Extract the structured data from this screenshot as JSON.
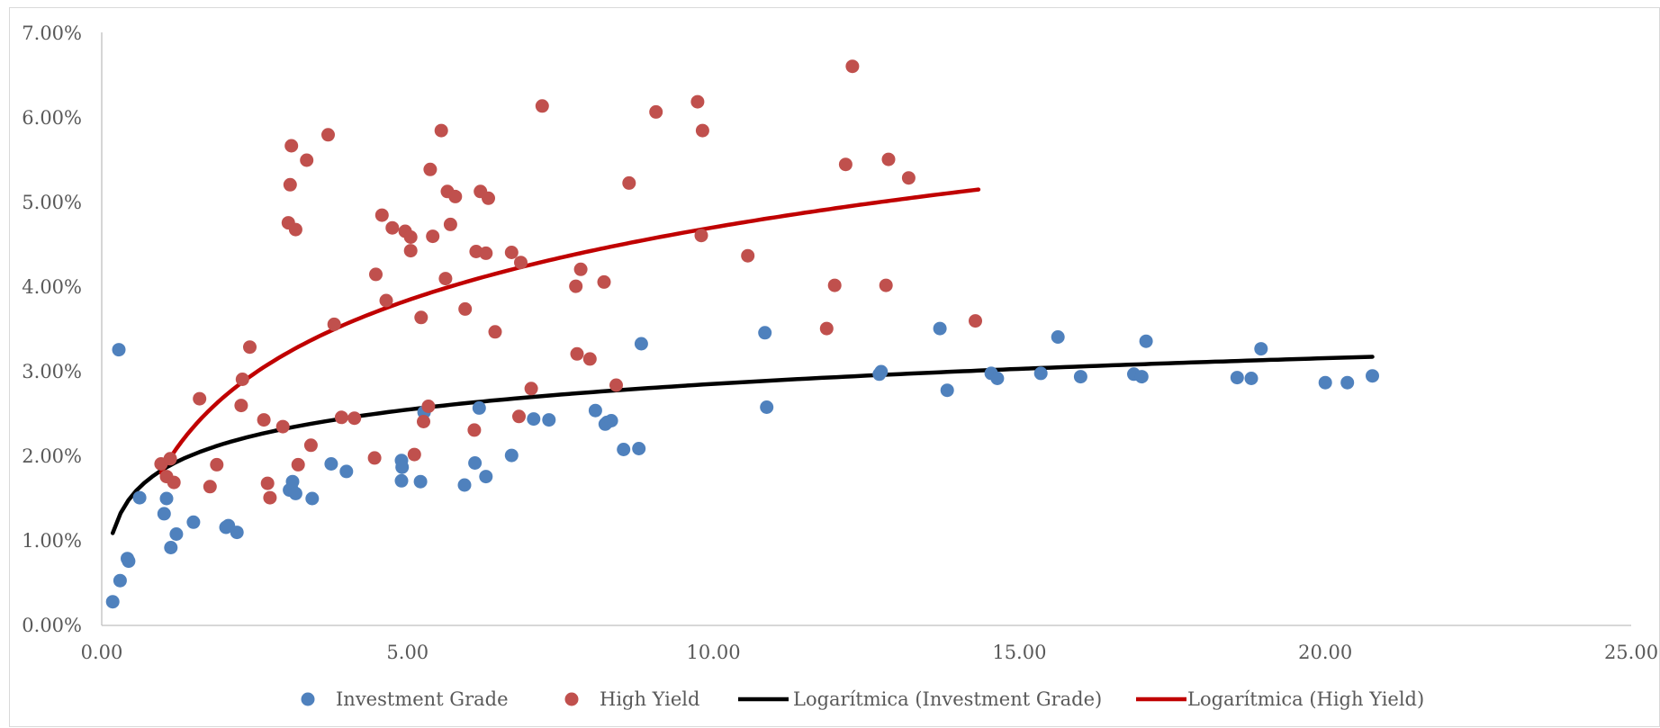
{
  "chart_data": {
    "type": "scatter",
    "title": "",
    "xlabel": "",
    "ylabel": "",
    "xlim": [
      0,
      25
    ],
    "ylim": [
      0,
      0.07
    ],
    "x_ticks": [
      0,
      5,
      10,
      15,
      20,
      25
    ],
    "x_tick_labels": [
      "0.00",
      "5.00",
      "10.00",
      "15.00",
      "20.00",
      "25.00"
    ],
    "y_ticks": [
      0,
      0.01,
      0.02,
      0.03,
      0.04,
      0.05,
      0.06,
      0.07
    ],
    "y_tick_labels": [
      "0.00%",
      "1.00%",
      "2.00%",
      "3.00%",
      "4.00%",
      "5.00%",
      "6.00%",
      "7.00%"
    ],
    "grid": false,
    "legend_position": "bottom",
    "series": [
      {
        "name": "Investment Grade",
        "kind": "scatter",
        "color": "#4F81BD",
        "x": [
          0.18,
          0.3,
          0.28,
          0.42,
          0.44,
          0.62,
          1.02,
          1.06,
          1.13,
          1.22,
          1.5,
          2.03,
          2.07,
          2.21,
          3.07,
          3.1,
          3.12,
          3.17,
          3.44,
          3.75,
          4.0,
          4.9,
          4.91,
          4.9,
          5.21,
          5.27,
          5.93,
          6.1,
          6.17,
          6.28,
          6.7,
          7.06,
          7.31,
          8.07,
          8.23,
          8.26,
          8.33,
          8.53,
          8.78,
          8.82,
          10.84,
          10.87,
          12.71,
          12.74,
          13.7,
          13.82,
          14.54,
          14.64,
          15.35,
          15.63,
          16.0,
          16.87,
          17.0,
          17.07,
          18.56,
          18.79,
          18.95,
          20.0,
          20.36,
          20.77
        ],
        "y": [
          0.0028,
          0.0053,
          0.0326,
          0.0079,
          0.0076,
          0.0151,
          0.0132,
          0.015,
          0.0092,
          0.0108,
          0.0122,
          0.0116,
          0.0118,
          0.011,
          0.016,
          0.0162,
          0.017,
          0.0156,
          0.015,
          0.0191,
          0.0182,
          0.0195,
          0.0187,
          0.0171,
          0.017,
          0.0252,
          0.0166,
          0.0192,
          0.0257,
          0.0176,
          0.0201,
          0.0244,
          0.0243,
          0.0254,
          0.0238,
          0.024,
          0.0242,
          0.0208,
          0.0209,
          0.0333,
          0.0346,
          0.0258,
          0.0297,
          0.03,
          0.0351,
          0.0278,
          0.0298,
          0.0292,
          0.0298,
          0.0341,
          0.0294,
          0.0297,
          0.0294,
          0.0336,
          0.0293,
          0.0292,
          0.0327,
          0.0287,
          0.0287,
          0.0295
        ]
      },
      {
        "name": "High Yield",
        "kind": "scatter",
        "color": "#C0504D",
        "x": [
          0.97,
          1.06,
          1.12,
          1.18,
          1.6,
          1.77,
          1.88,
          2.28,
          2.3,
          2.42,
          2.65,
          2.71,
          2.75,
          2.96,
          3.05,
          3.08,
          3.1,
          3.17,
          3.21,
          3.35,
          3.42,
          3.7,
          3.8,
          3.92,
          4.13,
          4.46,
          4.48,
          4.58,
          4.65,
          4.75,
          4.96,
          5.05,
          5.05,
          5.11,
          5.22,
          5.26,
          5.34,
          5.37,
          5.41,
          5.55,
          5.62,
          5.65,
          5.7,
          5.78,
          5.94,
          6.09,
          6.12,
          6.19,
          6.28,
          6.32,
          6.43,
          6.7,
          6.82,
          6.85,
          7.02,
          7.2,
          7.75,
          7.77,
          7.83,
          7.98,
          8.21,
          8.41,
          8.62,
          9.06,
          9.74,
          9.8,
          9.82,
          10.56,
          11.85,
          11.98,
          12.16,
          12.27,
          12.82,
          12.86,
          13.19,
          14.28
        ],
        "y": [
          0.0191,
          0.0176,
          0.0197,
          0.0169,
          0.0268,
          0.0164,
          0.019,
          0.026,
          0.0291,
          0.0329,
          0.0243,
          0.0168,
          0.0151,
          0.0235,
          0.0476,
          0.0521,
          0.0567,
          0.0468,
          0.019,
          0.055,
          0.0213,
          0.058,
          0.0356,
          0.0246,
          0.0245,
          0.0198,
          0.0415,
          0.0485,
          0.0384,
          0.047,
          0.0466,
          0.0443,
          0.0459,
          0.0202,
          0.0364,
          0.0241,
          0.0259,
          0.0539,
          0.046,
          0.0585,
          0.041,
          0.0513,
          0.0474,
          0.0507,
          0.0374,
          0.0231,
          0.0442,
          0.0513,
          0.044,
          0.0505,
          0.0347,
          0.0441,
          0.0247,
          0.0429,
          0.028,
          0.0614,
          0.0401,
          0.0321,
          0.0421,
          0.0315,
          0.0406,
          0.0284,
          0.0523,
          0.0607,
          0.0619,
          0.0461,
          0.0585,
          0.0437,
          0.0351,
          0.0402,
          0.0545,
          0.0661,
          0.0402,
          0.0551,
          0.0529,
          0.036
        ]
      },
      {
        "name": "Logarítmica (Investment Grade)",
        "kind": "log-trend",
        "color": "#000000",
        "x_range": [
          0.18,
          20.77
        ],
        "a": 0.01844,
        "b": 0.00439
      },
      {
        "name": "Logarítmica (High Yield)",
        "kind": "log-trend",
        "color": "#C00000",
        "x_range": [
          0.97,
          14.33
        ],
        "a": 0.01841,
        "b": 0.01244
      }
    ]
  }
}
